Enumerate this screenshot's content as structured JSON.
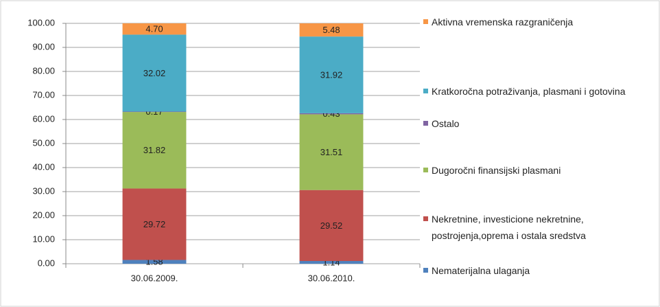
{
  "chart_data": {
    "type": "stacked_bar",
    "categories": [
      "30.06.2009.",
      "30.06.2010."
    ],
    "series": [
      {
        "name": "Nematerijalna ulaganja",
        "color": "#4f81bd",
        "values": [
          1.58,
          1.14
        ],
        "value_labels": [
          "1.58",
          "1.14"
        ]
      },
      {
        "name": "Nekretnine, investicione nekretnine, postrojenja,oprema i ostala sredstva",
        "color": "#c0504d",
        "values": [
          29.72,
          29.52
        ],
        "value_labels": [
          "29.72",
          "29.52"
        ]
      },
      {
        "name": "Dugoročni finansijski plasmani",
        "color": "#9bbb59",
        "values": [
          31.82,
          31.51
        ],
        "value_labels": [
          "31.82",
          "31.51"
        ]
      },
      {
        "name": "Ostalo",
        "color": "#8064a2",
        "values": [
          0.17,
          0.43
        ],
        "value_labels": [
          "0.17",
          "0.43"
        ]
      },
      {
        "name": "Kratkoročna potraživanja, plasmani i gotovina",
        "color": "#4bacc6",
        "values": [
          32.02,
          31.92
        ],
        "value_labels": [
          "32.02",
          "31.92"
        ]
      },
      {
        "name": "Aktivna vremenska razgraničenja",
        "color": "#f79646",
        "values": [
          4.7,
          5.48
        ],
        "value_labels": [
          "4.70",
          "5.48"
        ]
      }
    ],
    "ylim": [
      0,
      100
    ],
    "yticks": [
      {
        "value": 0,
        "label": "0.00"
      },
      {
        "value": 10,
        "label": "10.00"
      },
      {
        "value": 20,
        "label": "20.00"
      },
      {
        "value": 30,
        "label": "30.00"
      },
      {
        "value": 40,
        "label": "40.00"
      },
      {
        "value": 50,
        "label": "50.00"
      },
      {
        "value": 60,
        "label": "60.00"
      },
      {
        "value": 70,
        "label": "70.00"
      },
      {
        "value": 80,
        "label": "80.00"
      },
      {
        "value": 90,
        "label": "90.00"
      },
      {
        "value": 100,
        "label": "100.00"
      }
    ],
    "grid": true,
    "legend": "right"
  }
}
